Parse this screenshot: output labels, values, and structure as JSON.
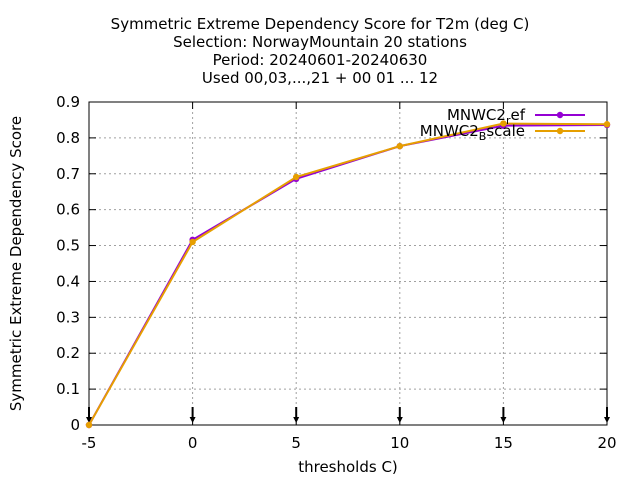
{
  "chart_data": {
    "type": "line",
    "title_lines": [
      "Symmetric Extreme Dependency Score  for T2m (deg C)",
      "Selection: NorwayMountain     20 stations",
      "Period: 20240601-20240630",
      "Used 00,03,...,21 + 00 01 ... 12"
    ],
    "xlabel": "thresholds C)",
    "ylabel": "Symmetric Extreme Dependency Score",
    "xlim": [
      -5,
      20
    ],
    "ylim": [
      0,
      0.9
    ],
    "xticks": [
      -5,
      0,
      5,
      10,
      15,
      20
    ],
    "yticks": [
      0,
      0.1,
      0.2,
      0.3,
      0.4,
      0.5,
      0.6,
      0.7,
      0.8,
      0.9
    ],
    "xtick_labels": [
      "-5",
      "0",
      "5",
      "10",
      "15",
      "20"
    ],
    "ytick_labels": [
      "0",
      "0.1",
      "0.2",
      "0.3",
      "0.4",
      "0.5",
      "0.6",
      "0.7",
      "0.8",
      "0.9"
    ],
    "grid": true,
    "legend_position": "top-right",
    "x": [
      -5,
      0,
      5,
      10,
      15,
      20
    ],
    "series": [
      {
        "name": "MNWC2_ref",
        "name_main": "MNWC2",
        "name_sub": "r",
        "name_rest": "ef",
        "color": "#9400d3",
        "values": [
          0.0,
          0.516,
          0.686,
          0.777,
          0.834,
          0.836
        ]
      },
      {
        "name": "MNWC2_Bscale",
        "name_main": "MNWC2",
        "name_sub": "B",
        "name_rest": "scale",
        "color": "#e69f00",
        "values": [
          0.0,
          0.51,
          0.691,
          0.777,
          0.84,
          0.838
        ]
      }
    ]
  }
}
